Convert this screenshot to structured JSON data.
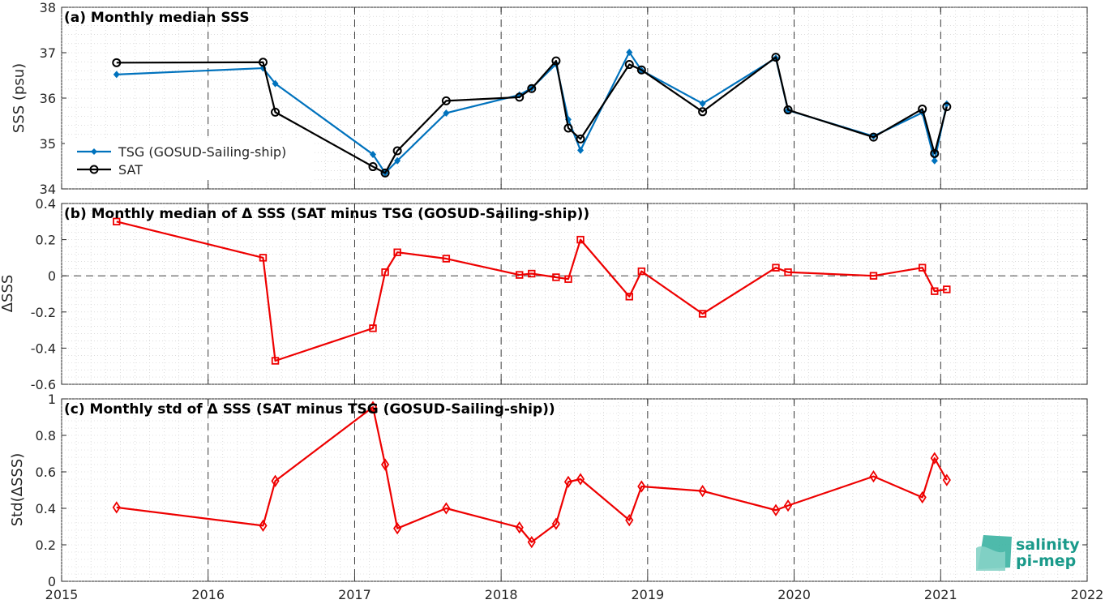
{
  "x_axis": {
    "min": 2015,
    "max": 2022,
    "ticks": [
      "2015",
      "2016",
      "2017",
      "2018",
      "2019",
      "2020",
      "2021",
      "2022"
    ]
  },
  "colors": {
    "tsg": "#0072BD",
    "sat": "#000000",
    "delta": "#EE0000"
  },
  "logo": {
    "line1": "salinity",
    "line2": "pi-mep",
    "color": "#1a9a8a"
  },
  "chart_data": [
    {
      "type": "line",
      "title": "(a) Monthly median SSS",
      "ylabel": "SSS (psu)",
      "ylim": [
        34,
        38
      ],
      "yticks": [
        "34",
        "35",
        "36",
        "37",
        "38"
      ],
      "grid": true,
      "legend_placement": "bottom-left",
      "series": [
        {
          "name": "TSG (GOSUD-Sailing-ship)",
          "marker": "filled-diamond",
          "x": [
            "2015-05",
            "2016-05",
            "2016-06",
            "2017-02",
            "2017-03",
            "2017-04",
            "2017-08",
            "2018-02",
            "2018-03",
            "2018-05",
            "2018-06",
            "2018-07",
            "2018-11",
            "2018-12",
            "2019-05",
            "2019-11",
            "2019-12",
            "2020-07",
            "2020-11",
            "2020-12",
            "2021-01"
          ],
          "values": [
            36.52,
            36.66,
            36.32,
            34.76,
            34.35,
            34.62,
            35.67,
            36.07,
            36.22,
            36.75,
            35.53,
            34.85,
            37.01,
            36.61,
            35.88,
            36.88,
            35.73,
            35.16,
            35.68,
            34.62,
            35.87
          ]
        },
        {
          "name": "SAT",
          "marker": "open-circle",
          "x": [
            "2015-05",
            "2016-05",
            "2016-06",
            "2017-02",
            "2017-03",
            "2017-04",
            "2017-08",
            "2018-02",
            "2018-03",
            "2018-05",
            "2018-06",
            "2018-07",
            "2018-11",
            "2018-12",
            "2019-05",
            "2019-11",
            "2019-12",
            "2020-07",
            "2020-11",
            "2020-12",
            "2021-01"
          ],
          "values": [
            36.78,
            36.79,
            35.69,
            34.49,
            34.35,
            34.84,
            35.94,
            36.02,
            36.21,
            36.82,
            35.34,
            35.1,
            36.74,
            36.62,
            35.7,
            36.9,
            35.74,
            35.14,
            35.76,
            34.78,
            35.81
          ]
        }
      ]
    },
    {
      "type": "line",
      "title": "(b) Monthly median of Δ SSS (SAT minus TSG (GOSUD-Sailing-ship))",
      "ylabel": "ΔSSS",
      "ylim": [
        -0.6,
        0.4
      ],
      "yticks": [
        "-0.6",
        "-0.4",
        "-0.2",
        "0",
        "0.2",
        "0.4"
      ],
      "grid": true,
      "series": [
        {
          "marker": "open-square",
          "x": [
            "2015-05",
            "2016-05",
            "2016-06",
            "2017-02",
            "2017-03",
            "2017-04",
            "2017-08",
            "2018-02",
            "2018-03",
            "2018-05",
            "2018-06",
            "2018-07",
            "2018-11",
            "2018-12",
            "2019-05",
            "2019-11",
            "2019-12",
            "2020-07",
            "2020-11",
            "2020-12",
            "2021-01"
          ],
          "values": [
            0.3,
            0.1,
            -0.47,
            -0.29,
            0.02,
            0.13,
            0.095,
            0.005,
            0.012,
            -0.008,
            -0.018,
            0.2,
            -0.115,
            0.025,
            -0.21,
            0.045,
            0.02,
            0.0,
            0.045,
            -0.085,
            -0.075
          ]
        }
      ]
    },
    {
      "type": "line",
      "title": "(c) Monthly std of Δ SSS (SAT minus TSG (GOSUD-Sailing-ship))",
      "ylabel": "Std(ΔSSS)",
      "ylim": [
        0,
        1
      ],
      "yticks": [
        "0",
        "0.2",
        "0.4",
        "0.6",
        "0.8",
        "1"
      ],
      "grid": true,
      "series": [
        {
          "marker": "open-diamond",
          "x": [
            "2015-05",
            "2016-05",
            "2016-06",
            "2017-02",
            "2017-03",
            "2017-04",
            "2017-08",
            "2018-02",
            "2018-03",
            "2018-05",
            "2018-06",
            "2018-07",
            "2018-11",
            "2018-12",
            "2019-05",
            "2019-11",
            "2019-12",
            "2020-07",
            "2020-11",
            "2020-12",
            "2021-01"
          ],
          "values": [
            0.405,
            0.305,
            0.55,
            0.955,
            0.64,
            0.29,
            0.4,
            0.295,
            0.215,
            0.315,
            0.545,
            0.56,
            0.335,
            0.52,
            0.495,
            0.39,
            0.415,
            0.575,
            0.46,
            0.675,
            0.555
          ]
        }
      ]
    }
  ]
}
